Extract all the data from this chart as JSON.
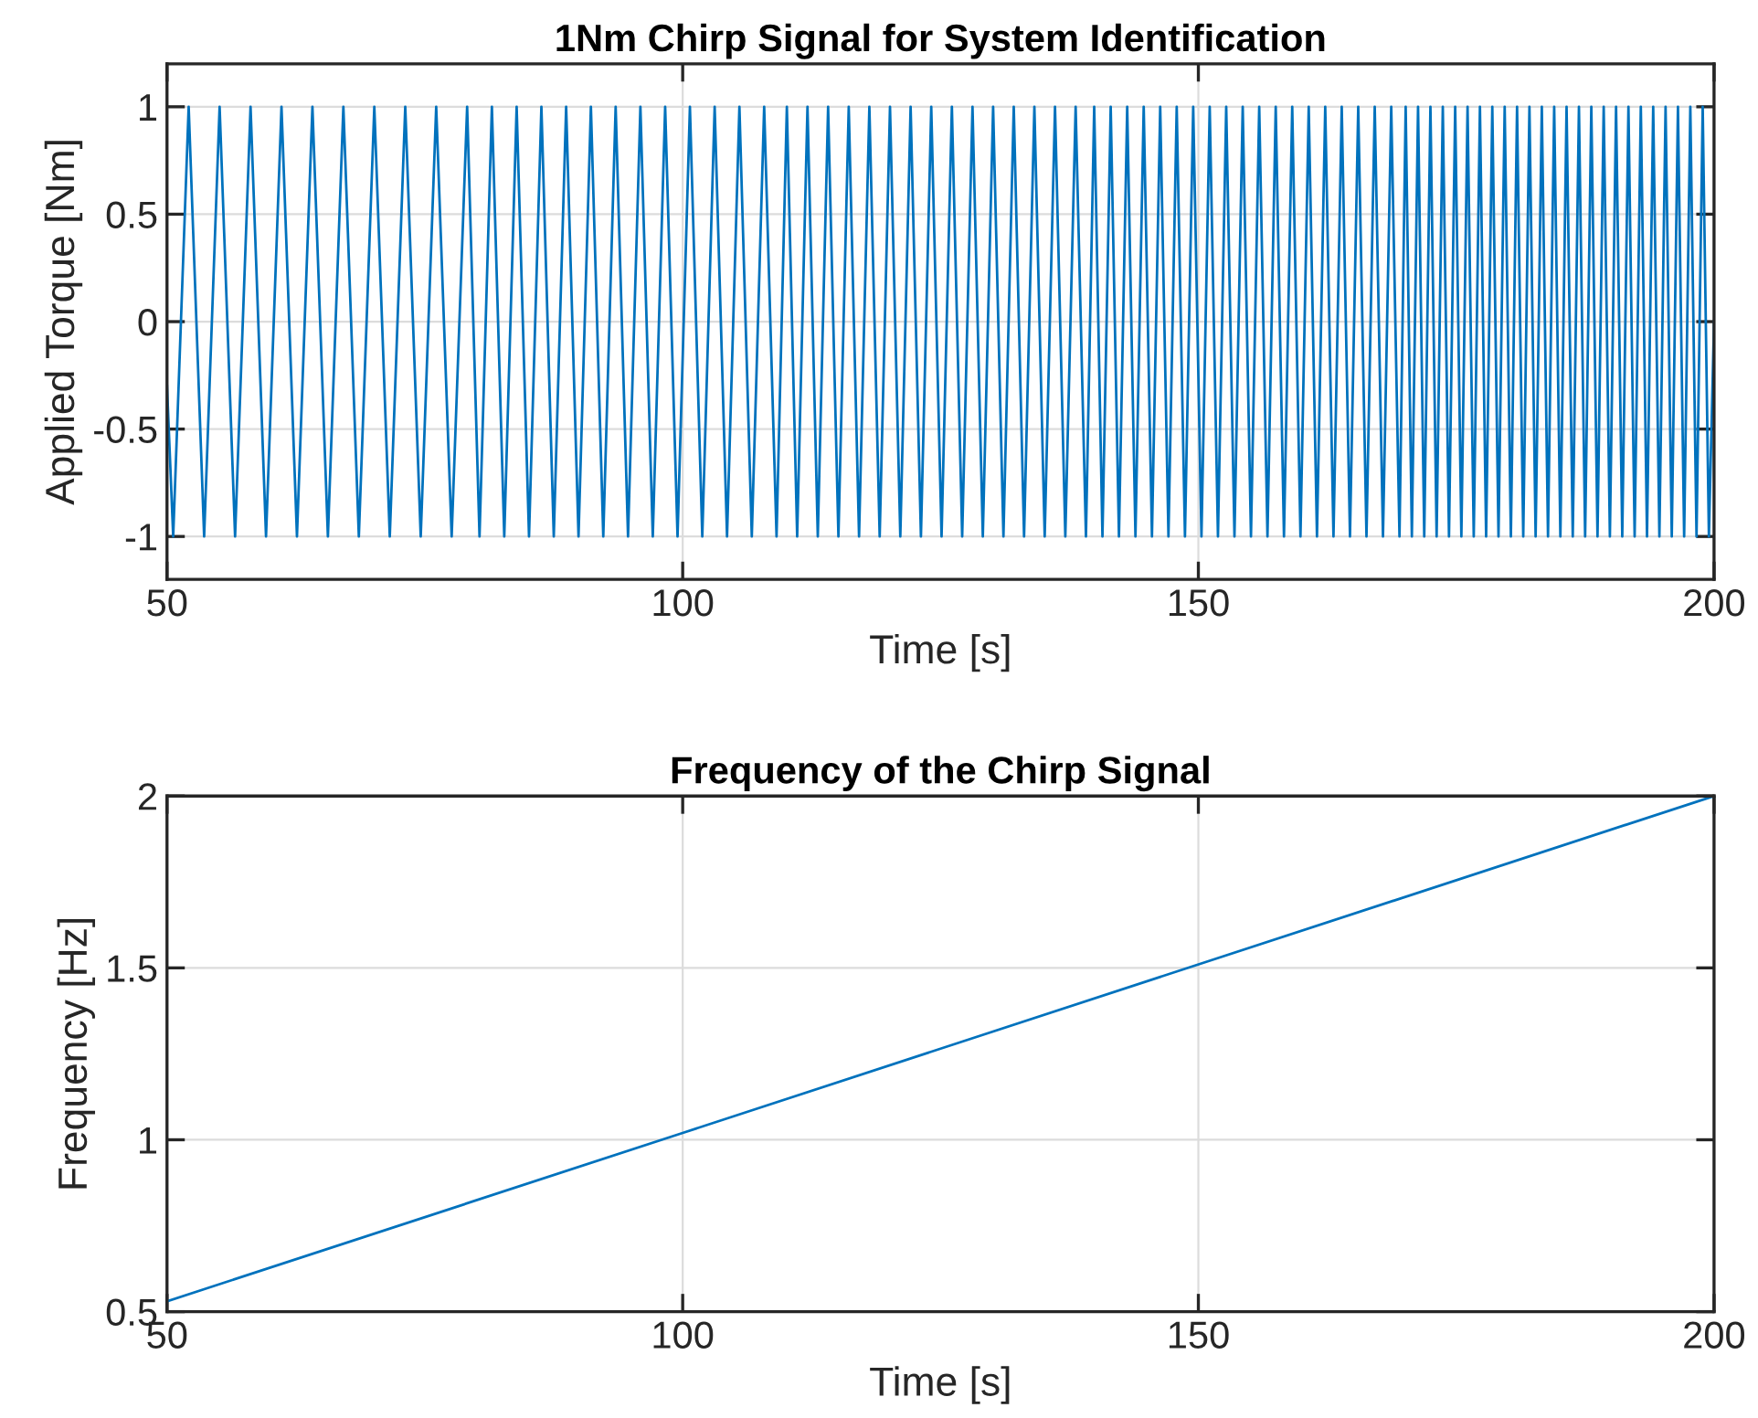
{
  "chart_data": [
    {
      "type": "line",
      "title": "1Nm Chirp Signal for System Identification",
      "xlabel": "Time [s]",
      "ylabel": "Applied Torque [Nm]",
      "xlim": [
        50,
        200
      ],
      "xticks": [
        50,
        100,
        150,
        200
      ],
      "ylim": [
        -1.2,
        1.2
      ],
      "yticks": [
        -1,
        -0.5,
        0,
        0.5,
        1
      ],
      "grid": true,
      "legend": false,
      "series": [
        {
          "color": "#0072bd",
          "x": [
            50,
            50.6,
            52.1,
            53.6,
            55.1,
            56.6,
            58.1,
            59.6,
            61.1,
            62.6,
            64.1,
            65.6,
            67.1,
            68.6,
            70.1,
            71.6,
            73.1,
            74.6,
            76.1,
            77.6,
            79.1,
            80.3,
            81.5,
            82.7,
            83.9,
            85.1,
            86.3,
            87.5,
            88.7,
            89.9,
            91.1,
            92.3,
            93.5,
            94.7,
            95.9,
            97.1,
            98.3,
            99.5,
            100.7,
            101.9,
            103.1,
            104.3,
            105.5,
            106.7,
            107.9,
            109.1,
            110.1,
            111.1,
            112.1,
            113.1,
            114.1,
            115.1,
            116.1,
            117.1,
            118.1,
            119.1,
            120.1,
            121.1,
            122.1,
            123.1,
            124.1,
            125.1,
            126.1,
            127.1,
            128.1,
            129.1,
            130.1,
            131.1,
            132.1,
            133.1,
            134.1,
            135.1,
            136.1,
            137.1,
            138.1,
            139.1,
            139.9,
            140.7,
            141.5,
            142.3,
            143.1,
            143.9,
            144.7,
            145.5,
            146.3,
            147.1,
            147.9,
            148.7,
            149.5,
            150.3,
            151.1,
            151.9,
            152.7,
            153.5,
            154.3,
            155.1,
            155.9,
            156.7,
            157.5,
            158.3,
            159.1,
            159.9,
            160.7,
            161.5,
            162.3,
            163.1,
            163.9,
            164.7,
            165.5,
            166.3,
            167.1,
            167.9,
            168.7,
            169.5,
            170.1,
            170.7,
            171.3,
            171.9,
            172.5,
            173.1,
            173.7,
            174.3,
            174.9,
            175.5,
            176.1,
            176.7,
            177.3,
            177.9,
            178.5,
            179.1,
            179.7,
            180.3,
            180.9,
            181.5,
            182.1,
            182.7,
            183.3,
            183.9,
            184.5,
            185.1,
            185.7,
            186.3,
            186.9,
            187.5,
            188.1,
            188.7,
            189.3,
            189.9,
            190.5,
            191.1,
            191.7,
            192.3,
            192.9,
            193.5,
            194.1,
            194.7,
            195.3,
            195.9,
            196.5,
            197.1,
            197.7,
            198.3,
            198.9,
            199.5,
            200
          ],
          "values": [
            -0.3,
            -1,
            1,
            -1,
            1,
            -1,
            1,
            -1,
            1,
            -1,
            1,
            -1,
            1,
            -1,
            1,
            -1,
            1,
            -1,
            1,
            -1,
            1,
            -1,
            1,
            -1,
            1,
            -1,
            1,
            -1,
            1,
            -1,
            1,
            -1,
            1,
            -1,
            1,
            -1,
            1,
            -1,
            1,
            -1,
            1,
            -1,
            1,
            -1,
            1,
            -1,
            1,
            -1,
            1,
            -1,
            1,
            -1,
            1,
            -1,
            1,
            -1,
            1,
            -1,
            1,
            -1,
            1,
            -1,
            1,
            -1,
            1,
            -1,
            1,
            -1,
            1,
            -1,
            1,
            -1,
            1,
            -1,
            1,
            -1,
            1,
            -1,
            1,
            -1,
            1,
            -1,
            1,
            -1,
            1,
            -1,
            1,
            -1,
            1,
            -1,
            1,
            -1,
            1,
            -1,
            1,
            -1,
            1,
            -1,
            1,
            -1,
            1,
            -1,
            1,
            -1,
            1,
            -1,
            1,
            -1,
            1,
            -1,
            1,
            -1,
            1,
            -1,
            1,
            -1,
            1,
            -1,
            1,
            -1,
            1,
            -1,
            1,
            -1,
            1,
            -1,
            1,
            -1,
            1,
            -1,
            1,
            -1,
            1,
            -1,
            1,
            -1,
            1,
            -1,
            1,
            -1,
            1,
            -1,
            1,
            -1,
            1,
            -1,
            1,
            -1,
            1,
            -1,
            1,
            -1,
            1,
            -1,
            1,
            -1,
            1,
            -1,
            1,
            -1,
            1,
            -1,
            1,
            -1,
            0
          ]
        }
      ]
    },
    {
      "type": "line",
      "title": "Frequency of the Chirp Signal",
      "xlabel": "Time [s]",
      "ylabel": "Frequency [Hz]",
      "xlim": [
        50,
        200
      ],
      "xticks": [
        50,
        100,
        150,
        200
      ],
      "ylim": [
        0.5,
        2
      ],
      "yticks": [
        0.5,
        1,
        1.5,
        2
      ],
      "grid": true,
      "legend": false,
      "series": [
        {
          "color": "#0072bd",
          "x": [
            50,
            100,
            200
          ],
          "values": [
            0.53,
            1.02,
            2.0
          ]
        }
      ]
    }
  ]
}
